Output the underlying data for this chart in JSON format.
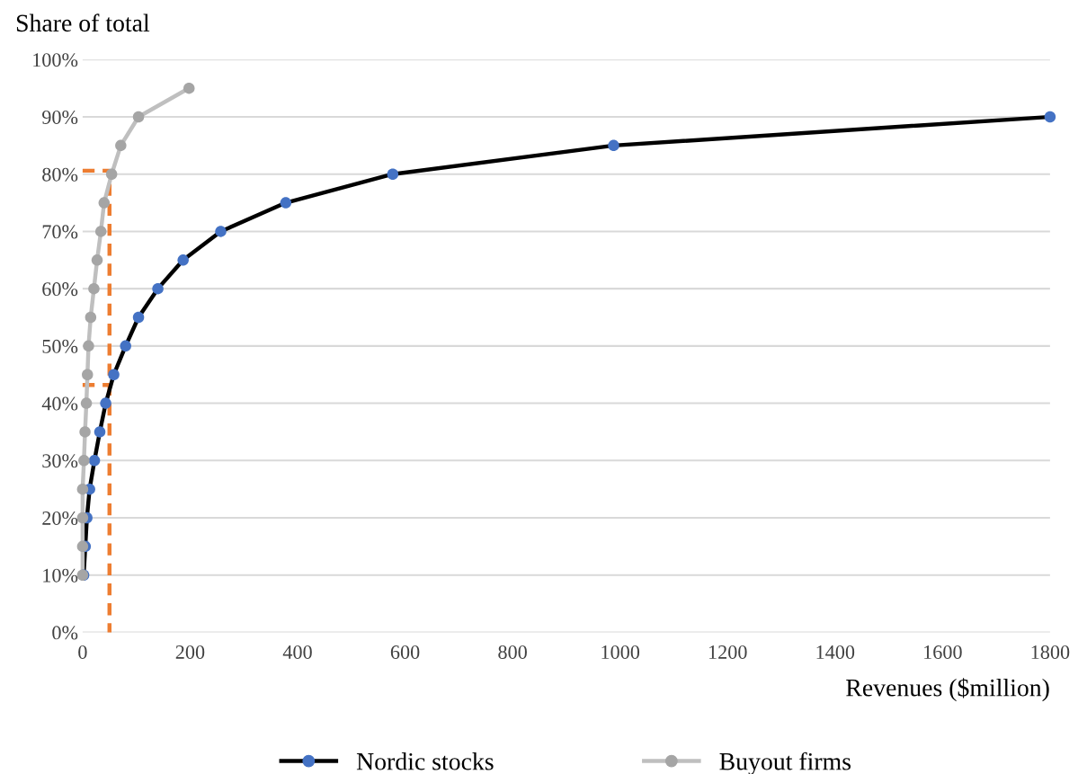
{
  "chart_data": {
    "type": "line",
    "ylabel": "Share of total",
    "xlabel": "Revenues ($million)",
    "xlim": [
      0,
      1800
    ],
    "xticks": [
      0,
      200,
      400,
      600,
      800,
      1000,
      1200,
      1400,
      1600,
      1800
    ],
    "ylim": [
      0,
      100
    ],
    "yticks": [
      {
        "value": 0,
        "label": "0%"
      },
      {
        "value": 10,
        "label": "10%"
      },
      {
        "value": 20,
        "label": "20%"
      },
      {
        "value": 30,
        "label": "30%"
      },
      {
        "value": 40,
        "label": "40%"
      },
      {
        "value": 50,
        "label": "50%"
      },
      {
        "value": 60,
        "label": "60%"
      },
      {
        "value": 70,
        "label": "70%"
      },
      {
        "value": 80,
        "label": "80%"
      },
      {
        "value": 90,
        "label": "90%"
      },
      {
        "value": 100,
        "label": "100%"
      }
    ],
    "grid": "y",
    "legend": "bottom",
    "marker": "circle",
    "series": [
      {
        "name": "Nordic stocks",
        "color": "#000000",
        "colors": [
          "#4472c4",
          "#4472c4",
          "#4472c4",
          "#4472c4",
          "#4472c4",
          "#4472c4",
          "#4472c4",
          "#4472c4",
          "#4472c4",
          "#4472c4",
          "#4472c4",
          "#4472c4",
          "#4472c4",
          "#4472c4",
          "#4472c4",
          "#4472c4",
          "#4472c4"
        ],
        "x": [
          2,
          5,
          8,
          13,
          22,
          32,
          43,
          58,
          80,
          104,
          140,
          187,
          257,
          378,
          577,
          988,
          1800
        ],
        "values": [
          10,
          15,
          20,
          25,
          30,
          35,
          40,
          45,
          50,
          55,
          60,
          65,
          70,
          75,
          80,
          85,
          90
        ]
      },
      {
        "name": "Buyout firms",
        "color": "#bfbfbf",
        "colors": [
          "#a5a5a5",
          "#a5a5a5",
          "#a5a5a5",
          "#a5a5a5",
          "#a5a5a5",
          "#a5a5a5",
          "#a5a5a5",
          "#a5a5a5",
          "#a5a5a5",
          "#a5a5a5",
          "#a5a5a5",
          "#a5a5a5",
          "#a5a5a5",
          "#a5a5a5",
          "#a5a5a5",
          "#a5a5a5",
          "#a5a5a5",
          "#a5a5a5"
        ],
        "x": [
          0,
          0,
          0,
          0,
          2.5,
          4.5,
          7,
          9,
          11,
          15,
          21,
          27,
          34,
          40,
          54,
          71,
          104,
          198
        ],
        "values": [
          10,
          15,
          20,
          25,
          30,
          35,
          40,
          45,
          50,
          55,
          60,
          65,
          70,
          75,
          80,
          85,
          90,
          95
        ]
      },
      {
        "type": "line",
        "color": "#ed7d31",
        "line_style": "dashed",
        "marker": "none",
        "x": [
          0,
          50,
          50
        ],
        "values": [
          80.6,
          80.6,
          0
        ]
      },
      {
        "type": "line",
        "color": "#ed7d31",
        "line_style": "dashed",
        "marker": "none",
        "x": [
          0,
          50
        ],
        "values": [
          43.2,
          43.2
        ]
      }
    ]
  }
}
